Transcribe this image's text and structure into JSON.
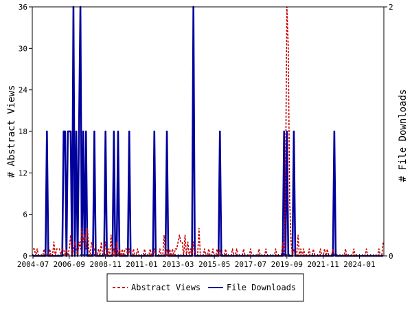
{
  "chart_data": {
    "type": "line",
    "title": "",
    "ylabel_left": "# Abstract Views",
    "ylabel_right": "# File Downloads",
    "ylim_left": [
      0,
      36
    ],
    "ylim_right": [
      0,
      2
    ],
    "yticks_left": [
      "0",
      "6",
      "12",
      "18",
      "24",
      "30",
      "36"
    ],
    "yticks_right": [
      "0",
      "2"
    ],
    "xticks": [
      "2004-07",
      "2006-09",
      "2008-11",
      "2011-01",
      "2013-03",
      "2015-05",
      "2017-07",
      "2019-09",
      "2021-11",
      "2024-01"
    ],
    "grid": false,
    "legend_position": "bottom",
    "x_start": "2004-07",
    "x_end": "2025-06",
    "series": [
      {
        "name": "Abstract Views",
        "axis": "left",
        "color": "#cc0000",
        "dash": "dashed",
        "x": [
          "2004-07",
          "2004-08",
          "2004-09",
          "2004-10",
          "2005-03",
          "2005-06",
          "2005-07",
          "2005-08",
          "2005-10",
          "2005-12",
          "2006-01",
          "2006-02",
          "2006-03",
          "2006-04",
          "2006-05",
          "2006-06",
          "2006-07",
          "2006-09",
          "2006-10",
          "2006-12",
          "2007-01",
          "2007-02",
          "2007-04",
          "2007-05",
          "2007-06",
          "2007-07",
          "2007-08",
          "2007-09",
          "2007-10",
          "2007-11",
          "2008-01",
          "2008-02",
          "2008-03",
          "2008-06",
          "2008-08",
          "2008-11",
          "2009-01",
          "2009-03",
          "2009-05",
          "2009-07",
          "2009-09",
          "2009-11",
          "2010-01",
          "2010-02",
          "2010-04",
          "2010-07",
          "2010-10",
          "2011-03",
          "2011-07",
          "2011-10",
          "2012-02",
          "2012-05",
          "2012-07",
          "2012-09",
          "2012-11",
          "2013-01",
          "2013-02",
          "2013-03",
          "2013-04",
          "2013-05",
          "2013-06",
          "2013-08",
          "2013-10",
          "2013-12",
          "2014-02",
          "2014-06",
          "2014-10",
          "2015-01",
          "2015-04",
          "2015-07",
          "2015-09",
          "2016-01",
          "2016-06",
          "2016-09",
          "2017-02",
          "2017-07",
          "2018-01",
          "2018-06",
          "2019-01",
          "2019-06",
          "2019-08",
          "2019-09",
          "2019-10",
          "2019-11",
          "2019-12",
          "2020-02",
          "2020-05",
          "2020-07",
          "2020-09",
          "2021-01",
          "2021-04",
          "2021-09",
          "2021-12",
          "2022-02",
          "2022-06",
          "2023-03",
          "2023-09",
          "2024-06",
          "2025-03",
          "2025-06"
        ],
        "values": [
          1,
          1,
          0,
          1,
          1,
          0,
          1,
          0,
          2,
          1,
          1,
          1,
          0,
          1,
          1,
          0,
          1,
          1,
          3,
          1,
          2,
          1,
          2,
          1,
          4,
          2,
          3,
          1,
          4,
          1,
          2,
          1,
          1,
          1,
          2,
          2,
          1,
          3,
          1,
          2,
          1,
          1,
          1,
          1,
          1,
          1,
          1,
          1,
          1,
          1,
          1,
          3,
          1,
          1,
          1,
          1,
          1,
          2,
          3,
          2,
          2,
          3,
          2,
          1,
          2,
          4,
          1,
          1,
          1,
          1,
          1,
          1,
          1,
          1,
          1,
          1,
          1,
          1,
          1,
          2,
          10,
          36,
          30,
          8,
          2,
          1,
          3,
          1,
          1,
          1,
          1,
          1,
          1,
          1,
          1,
          1,
          1,
          1,
          1,
          2
        ]
      },
      {
        "name": "File Downloads",
        "axis": "right",
        "color": "#00009c",
        "dash": "solid",
        "x": [
          "2005-05",
          "2006-05",
          "2006-06",
          "2006-08",
          "2006-09",
          "2006-10",
          "2006-12",
          "2007-02",
          "2007-04",
          "2007-05",
          "2007-07",
          "2007-09",
          "2008-03",
          "2008-11",
          "2009-05",
          "2009-08",
          "2010-04",
          "2011-10",
          "2012-07",
          "2014-02",
          "2015-09",
          "2019-07",
          "2019-09",
          "2020-02",
          "2022-07"
        ],
        "values": [
          1,
          1,
          1,
          1,
          1,
          1,
          2,
          1,
          1,
          2,
          1,
          1,
          1,
          1,
          1,
          1,
          1,
          1,
          1,
          2,
          1,
          1,
          1,
          1,
          1
        ]
      }
    ]
  }
}
